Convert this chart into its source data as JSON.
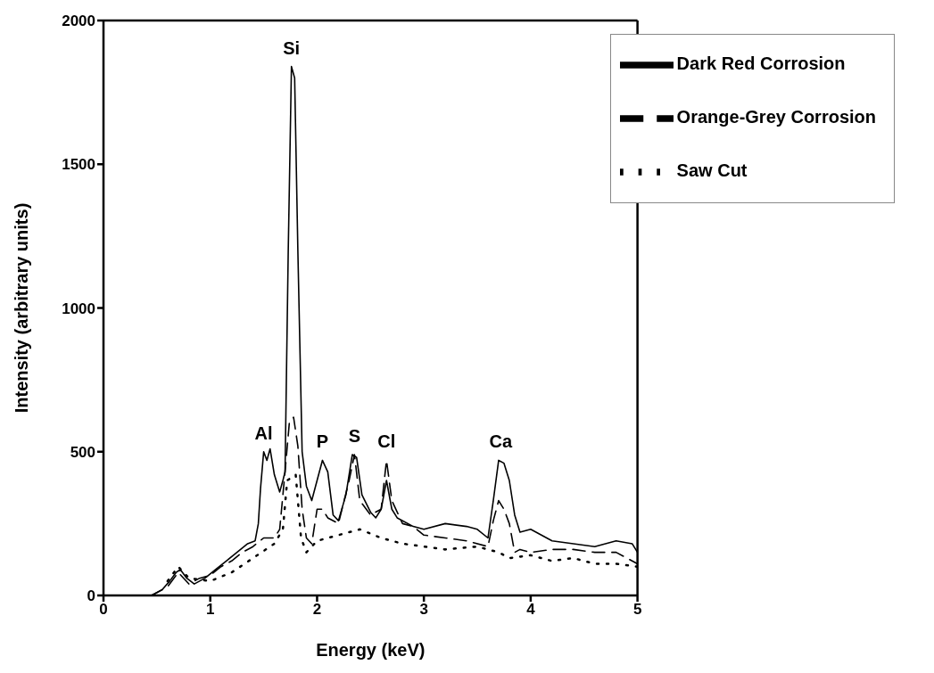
{
  "chart_data": {
    "type": "line",
    "xlabel": "Energy (keV)",
    "ylabel": "Intensity (arbitrary units)",
    "xlim": [
      0,
      5
    ],
    "xticks": [
      0,
      1,
      2,
      3,
      4,
      5
    ],
    "ylim": [
      0,
      2000
    ],
    "yticks": [
      0,
      500,
      1000,
      1500,
      2000
    ],
    "grid": false,
    "legend": "top right",
    "marker": "none",
    "series": [
      {
        "name": "Dark Red Corrosion",
        "color": "#000000",
        "line_style": "solid",
        "x": [
          0.45,
          0.55,
          0.62,
          0.68,
          0.72,
          0.78,
          0.85,
          0.95,
          1.05,
          1.15,
          1.25,
          1.35,
          1.42,
          1.45,
          1.47,
          1.5,
          1.53,
          1.56,
          1.6,
          1.65,
          1.68,
          1.7,
          1.73,
          1.76,
          1.79,
          1.82,
          1.86,
          1.9,
          1.95,
          2.0,
          2.05,
          2.1,
          2.15,
          2.2,
          2.27,
          2.33,
          2.37,
          2.42,
          2.5,
          2.55,
          2.6,
          2.65,
          2.7,
          2.75,
          2.9,
          3.0,
          3.2,
          3.4,
          3.5,
          3.6,
          3.65,
          3.7,
          3.75,
          3.8,
          3.85,
          3.9,
          4.0,
          4.1,
          4.2,
          4.4,
          4.6,
          4.8,
          4.95,
          5.0
        ],
        "values": [
          0,
          20,
          50,
          80,
          90,
          60,
          40,
          60,
          90,
          120,
          150,
          180,
          190,
          250,
          370,
          500,
          470,
          510,
          420,
          360,
          400,
          430,
          1200,
          1840,
          1800,
          1200,
          500,
          380,
          330,
          400,
          470,
          430,
          280,
          260,
          350,
          490,
          480,
          350,
          290,
          270,
          300,
          400,
          300,
          270,
          240,
          230,
          250,
          240,
          230,
          200,
          330,
          470,
          460,
          400,
          280,
          220,
          230,
          210,
          190,
          180,
          170,
          190,
          180,
          150
        ]
      },
      {
        "name": "Orange-Grey Corrosion",
        "color": "#000000",
        "line_style": "dashed",
        "x": [
          0.45,
          0.6,
          0.7,
          0.8,
          0.9,
          1.0,
          1.1,
          1.2,
          1.3,
          1.4,
          1.5,
          1.6,
          1.65,
          1.7,
          1.74,
          1.78,
          1.82,
          1.86,
          1.9,
          1.95,
          2.0,
          2.05,
          2.1,
          2.2,
          2.3,
          2.35,
          2.4,
          2.5,
          2.6,
          2.65,
          2.7,
          2.8,
          2.9,
          3.0,
          3.2,
          3.4,
          3.6,
          3.65,
          3.7,
          3.75,
          3.8,
          3.85,
          3.9,
          4.0,
          4.2,
          4.4,
          4.6,
          4.8,
          5.0
        ],
        "values": [
          0,
          30,
          80,
          40,
          60,
          70,
          100,
          120,
          150,
          170,
          200,
          200,
          230,
          430,
          600,
          620,
          520,
          300,
          200,
          180,
          300,
          300,
          270,
          250,
          400,
          490,
          330,
          280,
          300,
          470,
          330,
          250,
          240,
          210,
          200,
          190,
          170,
          260,
          330,
          300,
          250,
          150,
          160,
          150,
          160,
          160,
          150,
          150,
          110
        ]
      },
      {
        "name": "Saw Cut",
        "color": "#000000",
        "line_style": "dotted",
        "x": [
          0.6,
          0.7,
          0.8,
          1.0,
          1.2,
          1.4,
          1.6,
          1.68,
          1.72,
          1.8,
          1.85,
          1.9,
          2.0,
          2.2,
          2.4,
          2.6,
          2.8,
          3.0,
          3.2,
          3.5,
          3.7,
          3.8,
          4.0,
          4.2,
          4.4,
          4.6,
          4.8,
          5.0
        ],
        "values": [
          50,
          100,
          60,
          50,
          80,
          130,
          180,
          230,
          400,
          420,
          200,
          150,
          190,
          210,
          230,
          200,
          180,
          170,
          160,
          170,
          150,
          130,
          140,
          120,
          130,
          110,
          110,
          100
        ]
      }
    ],
    "annotations": [
      {
        "text": "Si",
        "x": 1.76,
        "y": 1840
      },
      {
        "text": "Al",
        "x": 1.5,
        "y": 500
      },
      {
        "text": "P",
        "x": 2.05,
        "y": 470
      },
      {
        "text": "S",
        "x": 2.35,
        "y": 490
      },
      {
        "text": "Cl",
        "x": 2.65,
        "y": 470
      },
      {
        "text": "Ca",
        "x": 3.72,
        "y": 470
      }
    ]
  }
}
